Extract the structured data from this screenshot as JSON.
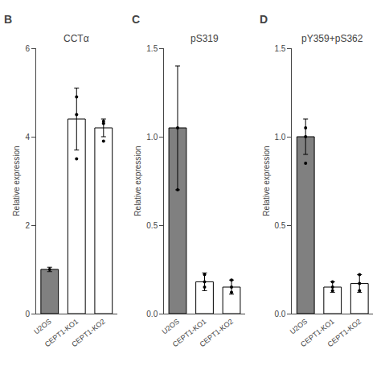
{
  "chart_data": [
    {
      "type": "bar",
      "title": "CCTα",
      "annotations": [
        "B"
      ],
      "categories": [
        "U2OS",
        "CEPT1-KO1",
        "CEPT1-KO2"
      ],
      "values": [
        1.0,
        4.4,
        4.2
      ],
      "colors": [
        "#808080",
        "#ffffff",
        "#ffffff"
      ],
      "error_bars": [
        0.05,
        0.7,
        0.2
      ],
      "dots": [
        [
          1.0
        ],
        [
          3.5,
          4.5,
          4.9
        ],
        [
          3.9,
          4.3,
          4.35
        ]
      ],
      "ylabel": "Relative expression",
      "ylim": [
        0,
        6
      ],
      "yticks": [
        0,
        2,
        4,
        6
      ],
      "grid": false
    },
    {
      "type": "bar",
      "title": "pS319",
      "annotations": [
        "C"
      ],
      "categories": [
        "U2OS",
        "CEPT1-KO1",
        "CEPT1-KO2"
      ],
      "values": [
        1.05,
        0.18,
        0.15
      ],
      "colors": [
        "#808080",
        "#ffffff",
        "#ffffff"
      ],
      "error_bars": [
        0.35,
        0.05,
        0.04
      ],
      "dots": [
        [
          0.7,
          1.05
        ],
        [
          0.15,
          0.18,
          0.22
        ],
        [
          0.12,
          0.15,
          0.19
        ]
      ],
      "ylabel": "Relative expression",
      "ylim": [
        0,
        1.5
      ],
      "yticks": [
        {
          "value": 0.0,
          "label": "0.0"
        },
        0.5,
        {
          "value": 1.0,
          "label": "1.0"
        },
        1.5
      ],
      "grid": false
    },
    {
      "type": "bar",
      "title": "pY359+pS362",
      "annotations": [
        "D"
      ],
      "categories": [
        "U2OS",
        "CEPT1-KO1",
        "CEPT1-KO2"
      ],
      "values": [
        1.0,
        0.15,
        0.17
      ],
      "colors": [
        "#808080",
        "#ffffff",
        "#ffffff"
      ],
      "error_bars": [
        0.1,
        0.03,
        0.05
      ],
      "dots": [
        [
          0.85,
          1.0,
          1.05
        ],
        [
          0.13,
          0.15,
          0.18
        ],
        [
          0.13,
          0.17,
          0.22
        ]
      ],
      "ylabel": "Relative expression",
      "ylim": [
        0,
        1.5
      ],
      "yticks": [
        {
          "value": 0.0,
          "label": "0.0"
        },
        0.5,
        {
          "value": 1.0,
          "label": "1.0"
        },
        1.5
      ],
      "grid": false
    }
  ]
}
